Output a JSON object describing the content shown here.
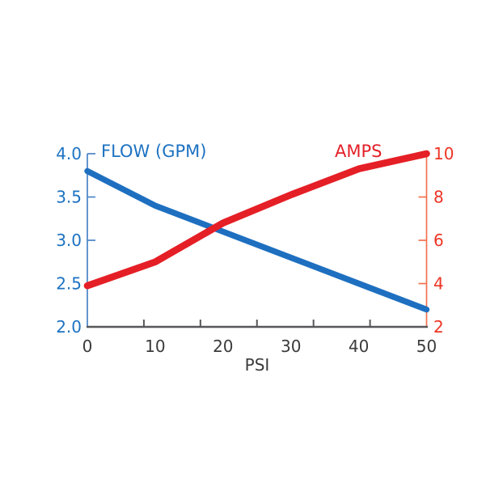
{
  "page": {
    "background": "#ffffff"
  },
  "chart_data": {
    "type": "line",
    "title": "",
    "xlabel": "PSI",
    "x": [
      0,
      10,
      20,
      30,
      40,
      50
    ],
    "x_axis": {
      "ticks": [
        "0",
        "10",
        "20",
        "30",
        "40",
        "50"
      ],
      "text_color": "#3b3b3d",
      "line_color": "#57575a"
    },
    "left_axis": {
      "title": "FLOW (GPM)",
      "title_color": "#1d72c2",
      "range": [
        2.0,
        4.0
      ],
      "ticks": [
        "4.0",
        "3.5",
        "3.0",
        "2.5",
        "2.0"
      ],
      "text_color": "#1d72c2",
      "line_color": "#4a84c8"
    },
    "right_axis": {
      "title": "AMPS",
      "title_color": "#e42029",
      "range": [
        2,
        10
      ],
      "ticks": [
        "10",
        "8",
        "6",
        "4",
        "2"
      ],
      "text_color": "#ee3424",
      "line_color": "#f2714e"
    },
    "series": [
      {
        "name": "FLOW (GPM)",
        "axis": "left",
        "color": "#1e6fc0",
        "stroke_width": 7.4,
        "values": [
          3.8,
          3.4,
          3.1,
          2.8,
          2.5,
          2.2
        ]
      },
      {
        "name": "AMPS",
        "axis": "right",
        "color": "#e51f26",
        "stroke_width": 8.6,
        "values": [
          3.9,
          5.0,
          6.8,
          8.1,
          9.3,
          10.0
        ]
      }
    ],
    "grid": false,
    "legend": "inline-text-labels"
  }
}
